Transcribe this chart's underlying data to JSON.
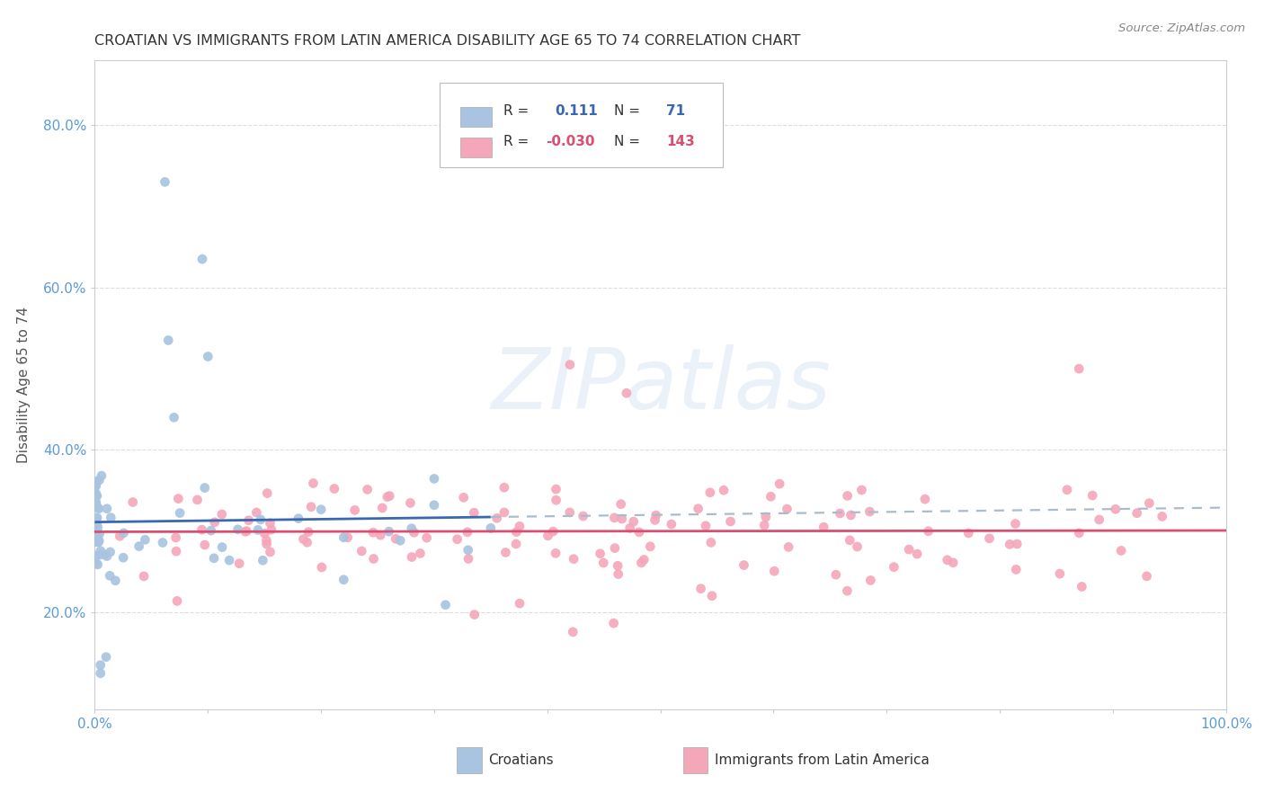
{
  "title": "CROATIAN VS IMMIGRANTS FROM LATIN AMERICA DISABILITY AGE 65 TO 74 CORRELATION CHART",
  "source": "Source: ZipAtlas.com",
  "ylabel": "Disability Age 65 to 74",
  "watermark": "ZIPatlas",
  "legend_croatians": "Croatians",
  "legend_latin": "Immigrants from Latin America",
  "R_croatians": 0.111,
  "N_croatians": 71,
  "R_latin": -0.03,
  "N_latin": 143,
  "blue_color": "#a8c4e0",
  "pink_color": "#f4a7b9",
  "blue_line_color": "#3a68b0",
  "pink_line_color": "#d94f72",
  "dash_line_color": "#aabbcc",
  "axis_color": "#cccccc",
  "grid_color": "#dddddd",
  "tick_color": "#5b9bd5",
  "watermark_color": "#dce8f5"
}
